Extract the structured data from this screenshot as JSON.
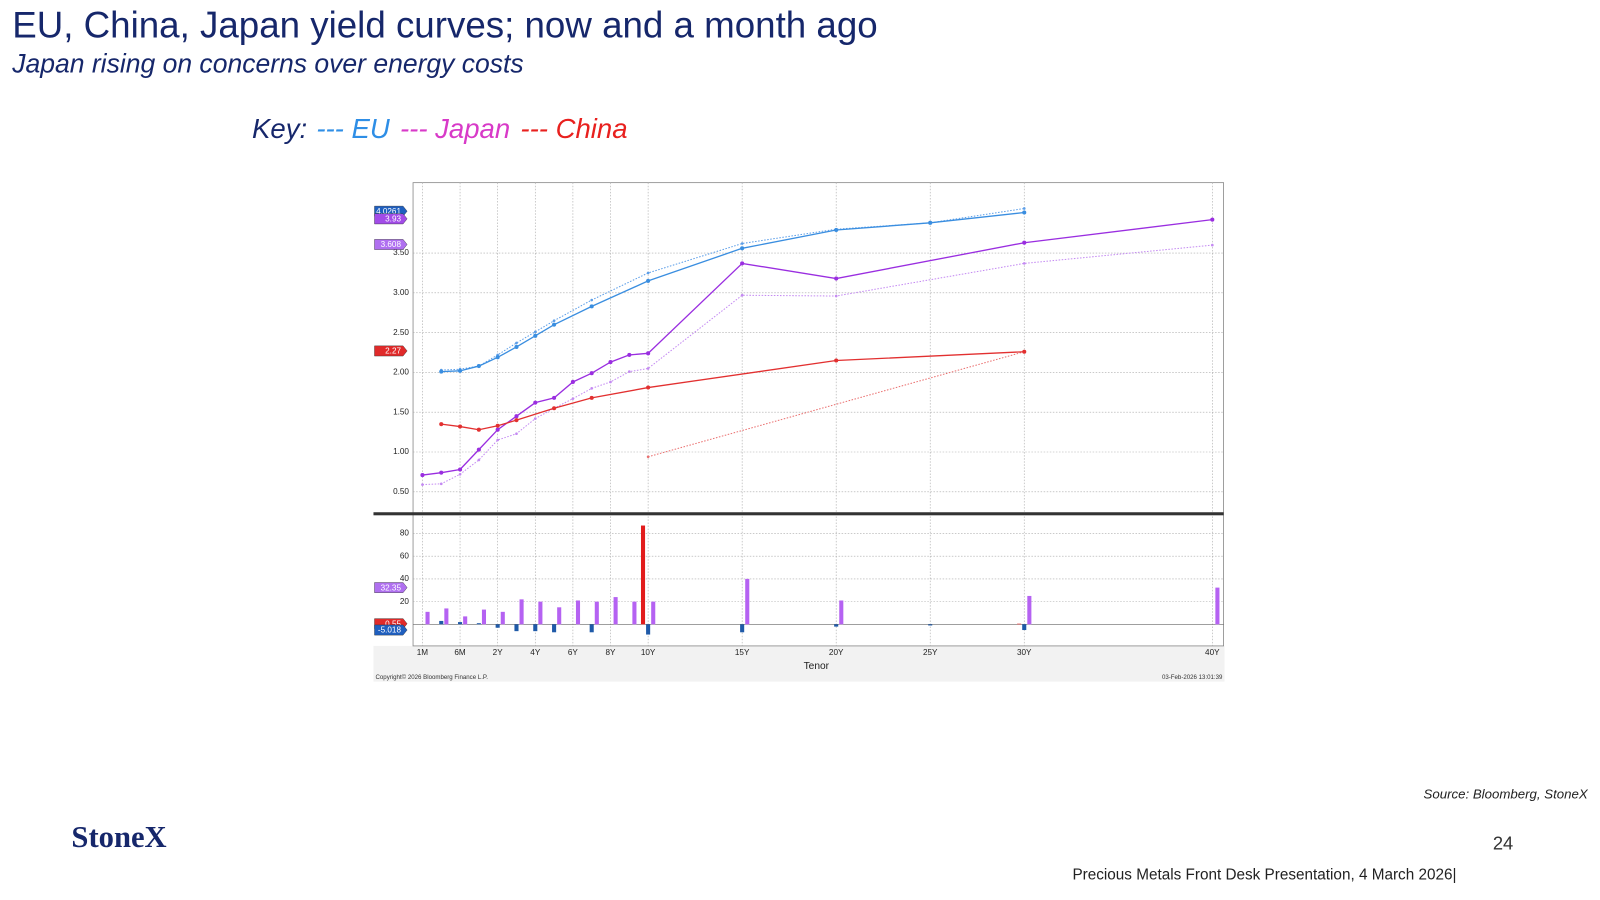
{
  "slide": {
    "title": "EU, China, Japan yield curves; now and a month ago",
    "subtitle": "Japan rising on concerns over energy costs",
    "key_label": "Key:",
    "key": [
      {
        "label": "--- EU",
        "color": "#2e8ee6"
      },
      {
        "label": "--- Japan",
        "color": "#d83ac8"
      },
      {
        "label": "--- China",
        "color": "#e8201e"
      }
    ],
    "source": "Source: Bloomberg, StoneX",
    "logo": "StoneX",
    "page_number": 24,
    "footer": "Precious Metals Front Desk Presentation, 4 March 2026|"
  },
  "chart_data": {
    "type": "line",
    "x_label": "Tenor",
    "copyright": "Copyright© 2026 Bloomberg Finance L.P.",
    "timestamp": "03-Feb-2026 13:01:39",
    "grid": true,
    "xlim": [
      0,
      40.6
    ],
    "xticks": [
      {
        "value": 0.0833,
        "label": "1M"
      },
      {
        "value": 0.5,
        "label": "6M"
      },
      {
        "value": 2,
        "label": "2Y"
      },
      {
        "value": 4,
        "label": "4Y"
      },
      {
        "value": 6,
        "label": "6Y"
      },
      {
        "value": 8,
        "label": "8Y"
      },
      {
        "value": 10,
        "label": "10Y"
      },
      {
        "value": 15,
        "label": "15Y"
      },
      {
        "value": 20,
        "label": "20Y"
      },
      {
        "value": 25,
        "label": "25Y"
      },
      {
        "value": 30,
        "label": "30Y"
      },
      {
        "value": 40,
        "label": "40Y"
      }
    ],
    "ylim": [
      0.23,
      4.385
    ],
    "yticks": [
      {
        "value": 0.5,
        "label": "0.50"
      },
      {
        "value": 1,
        "label": "1.00"
      },
      {
        "value": 1.5,
        "label": "1.50"
      },
      {
        "value": 2,
        "label": "2.00"
      },
      {
        "value": 2.5,
        "label": "2.50"
      },
      {
        "value": 3,
        "label": "3.00"
      },
      {
        "value": 3.5,
        "label": "3.50"
      }
    ],
    "series": [
      {
        "color": "#5c9ee8",
        "dash": "dotted",
        "x": [
          0.25,
          0.5,
          1,
          2,
          3,
          4,
          5,
          7,
          10,
          15,
          20,
          25,
          30
        ],
        "values": [
          2.03,
          2.04,
          2.08,
          2.22,
          2.37,
          2.51,
          2.65,
          2.91,
          3.25,
          3.62,
          3.8,
          3.88,
          4.06
        ]
      },
      {
        "color": "#3a8ee0",
        "dash": "solid",
        "x": [
          0.25,
          0.5,
          1,
          2,
          3,
          4,
          5,
          7,
          10,
          15,
          20,
          25,
          30
        ],
        "values": [
          2.01,
          2.02,
          2.08,
          2.19,
          2.32,
          2.46,
          2.6,
          2.83,
          3.15,
          3.56,
          3.79,
          3.88,
          4.01
        ]
      },
      {
        "color": "#c48af2",
        "dash": "dotted",
        "x": [
          0.0833,
          0.25,
          0.5,
          1,
          2,
          3,
          4,
          5,
          6,
          7,
          8,
          9,
          10,
          15,
          20,
          30,
          40
        ],
        "values": [
          0.59,
          0.6,
          0.72,
          0.9,
          1.15,
          1.23,
          1.42,
          1.55,
          1.67,
          1.8,
          1.88,
          2.01,
          2.05,
          2.97,
          2.96,
          3.37,
          3.6
        ]
      },
      {
        "color": "#9a2ee0",
        "dash": "solid",
        "x": [
          0.0833,
          0.25,
          0.5,
          1,
          2,
          3,
          4,
          5,
          6,
          7,
          8,
          9,
          10,
          15,
          20,
          30,
          40
        ],
        "values": [
          0.71,
          0.74,
          0.78,
          1.03,
          1.28,
          1.45,
          1.62,
          1.68,
          1.88,
          1.99,
          2.13,
          2.22,
          2.24,
          3.37,
          3.18,
          3.63,
          3.92
        ]
      },
      {
        "color": "#ea7070",
        "dash": "dotted",
        "x": [
          10,
          30
        ],
        "values": [
          0.94,
          2.26
        ]
      },
      {
        "color": "#e23030",
        "dash": "solid",
        "x": [
          0.25,
          0.5,
          1,
          2,
          3,
          5,
          7,
          10,
          20,
          30
        ],
        "values": [
          1.35,
          1.32,
          1.28,
          1.33,
          1.4,
          1.55,
          1.68,
          1.81,
          2.15,
          2.26
        ]
      }
    ],
    "tags": [
      {
        "value": 4.0261,
        "color": "#1f5fbf"
      },
      {
        "value": 3.93,
        "color": "#a24ce8"
      },
      {
        "value": 3.608,
        "color": "#b070f0"
      },
      {
        "value": 2.27,
        "color": "#e02a2a"
      }
    ],
    "lower_panel": {
      "type": "bar",
      "ylim": [
        -19,
        96
      ],
      "yticks": [
        20,
        40,
        60,
        80
      ],
      "series": [
        {
          "color": "#b562f2",
          "offset": 5,
          "x": [
            0.0833,
            0.25,
            0.5,
            1,
            2,
            3,
            4,
            5,
            6,
            7,
            8,
            9,
            10,
            15,
            20,
            30,
            40
          ],
          "values": [
            11,
            14,
            7,
            13,
            11,
            22,
            20,
            15,
            21,
            20,
            24,
            20,
            20,
            40,
            21,
            25,
            32.35
          ]
        },
        {
          "color": "#1f5aa8",
          "offset": 0,
          "x": [
            0.25,
            0.5,
            1,
            2,
            3,
            4,
            5,
            7,
            10,
            15,
            20,
            25,
            30
          ],
          "values": [
            3,
            2,
            1,
            -3,
            -6,
            -6,
            -7,
            -7,
            -9,
            -7,
            -2,
            -1,
            -5.018
          ]
        },
        {
          "color": "#e21c1c",
          "offset": -5,
          "x": [
            10,
            30
          ],
          "values": [
            87,
            0.55
          ]
        }
      ],
      "tags": [
        {
          "value": 32.35,
          "color": "#b070f0"
        },
        {
          "value": 0.55,
          "color": "#e02a2a"
        },
        {
          "value": -5.018,
          "color": "#1f5fbf"
        }
      ]
    }
  }
}
